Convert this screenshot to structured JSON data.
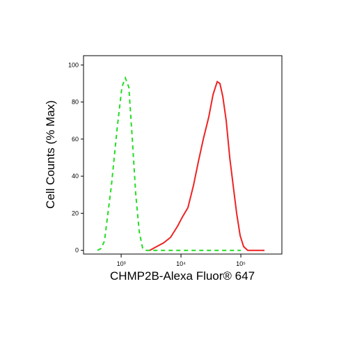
{
  "chart_data": {
    "type": "line",
    "xlabel": "CHMP2B-Alexa Fluor® 647",
    "ylabel": "Cell Counts (% Max)",
    "xscale": "log",
    "xlim": [
      235,
      485000
    ],
    "ylim": [
      -2,
      105
    ],
    "xticks": [
      {
        "value": 1000,
        "label": "10³"
      },
      {
        "value": 10000,
        "label": "10⁴"
      },
      {
        "value": 100000,
        "label": "10⁵"
      }
    ],
    "yticks": [
      0,
      20,
      40,
      60,
      80,
      100
    ],
    "series": [
      {
        "color": "#22dd22",
        "dash": true,
        "x": [
          403,
          460,
          526,
          687,
          851,
          1027,
          1174,
          1342,
          1534,
          1754,
          2005,
          2292,
          2622,
          10000,
          100000
        ],
        "values": [
          0,
          1,
          5,
          35,
          65,
          88,
          93,
          88,
          60,
          30,
          10,
          1,
          0,
          0,
          0
        ]
      },
      {
        "color": "#ee2222",
        "dash": false,
        "x": [
          2998,
          3917,
          5117,
          6700,
          8750,
          10550,
          13060,
          16190,
          19530,
          23560,
          29170,
          34270,
          40260,
          44790,
          49890,
          57000,
          65190,
          74480,
          85170,
          97300,
          111300,
          130700,
          248000
        ],
        "values": [
          0,
          2,
          4,
          7,
          13,
          18,
          23,
          35,
          48,
          60,
          72,
          84,
          91,
          90,
          83,
          70,
          50,
          35,
          20,
          8,
          2,
          0,
          0
        ]
      }
    ]
  }
}
